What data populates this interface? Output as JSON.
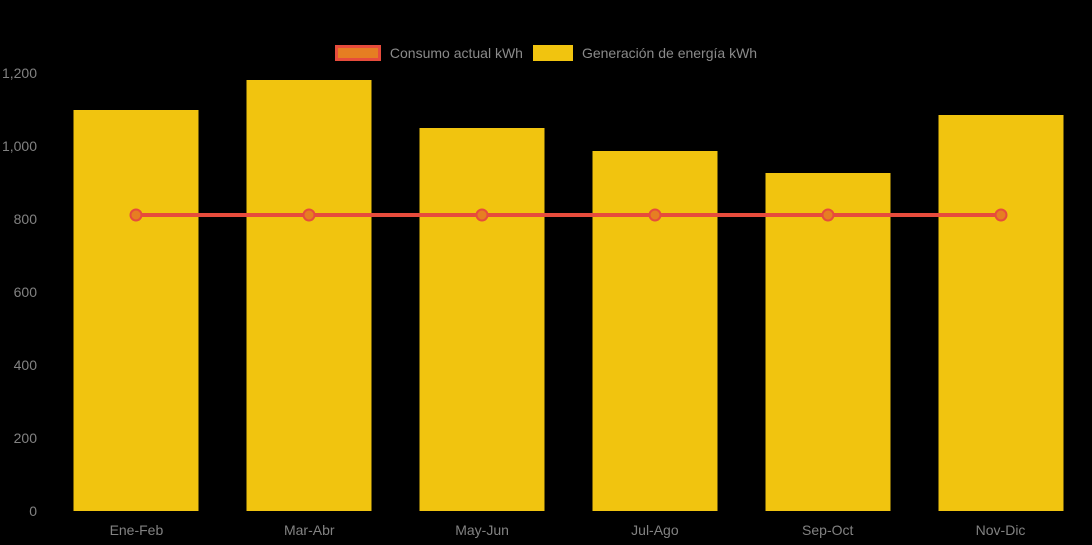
{
  "legend": {
    "items": [
      {
        "label": "Consumo actual kWh",
        "type": "line",
        "stroke": "#E74C3C",
        "fill": "#E67E22"
      },
      {
        "label": "Generación de energía kWh",
        "type": "bar",
        "fill": "#F1C40F"
      }
    ]
  },
  "chart_data": {
    "type": "combo-bar-line",
    "categories": [
      "Ene-Feb",
      "Mar-Abr",
      "May-Jun",
      "Jul-Ago",
      "Sep-Oct",
      "Nov-Dic"
    ],
    "series": [
      {
        "name": "Generación de energía kWh",
        "type": "bar",
        "color": "#F1C40F",
        "values": [
          1100,
          1180,
          1050,
          985,
          925,
          1085
        ]
      },
      {
        "name": "Consumo actual kWh",
        "type": "line",
        "color": "#E74C3C",
        "marker_fill": "#E67E22",
        "values": [
          810,
          810,
          810,
          810,
          810,
          810
        ]
      }
    ],
    "ylim": [
      0,
      1200
    ],
    "yticks": [
      0,
      200,
      400,
      600,
      800,
      1000,
      1200
    ],
    "ytick_labels": [
      "0",
      "200",
      "400",
      "600",
      "800",
      "1,000",
      "1,200"
    ],
    "xlabel": "",
    "ylabel": "",
    "title": "",
    "grid": false,
    "legend_position": "top-center",
    "background_color": "#000000",
    "text_color": "#828282"
  }
}
